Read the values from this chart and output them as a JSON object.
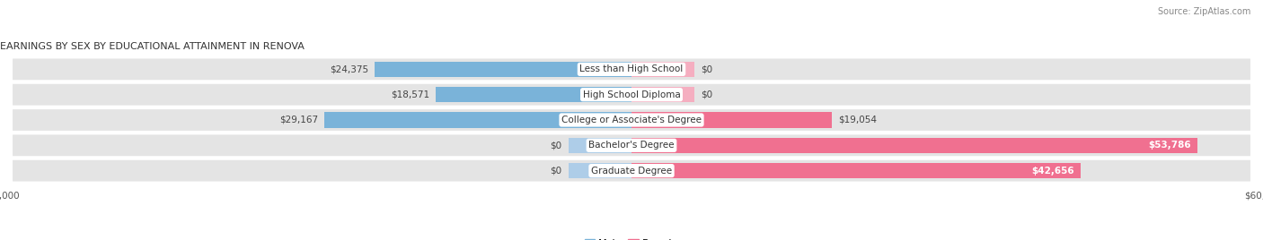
{
  "title": "EARNINGS BY SEX BY EDUCATIONAL ATTAINMENT IN RENOVA",
  "source": "Source: ZipAtlas.com",
  "categories": [
    "Less than High School",
    "High School Diploma",
    "College or Associate's Degree",
    "Bachelor's Degree",
    "Graduate Degree"
  ],
  "male_values": [
    24375,
    18571,
    29167,
    0,
    0
  ],
  "female_values": [
    0,
    0,
    19054,
    53786,
    42656
  ],
  "male_color": "#7ab3d9",
  "female_color": "#f07090",
  "male_stub_color": "#aecde8",
  "female_stub_color": "#f5aec0",
  "axis_max": 60000,
  "stub_size": 6000,
  "bar_height": 0.62,
  "row_bg_color": "#e4e4e4",
  "background_color": "#ffffff",
  "label_fontsize": 7.5,
  "title_fontsize": 8.0,
  "source_fontsize": 7.0,
  "legend_fontsize": 8.0
}
